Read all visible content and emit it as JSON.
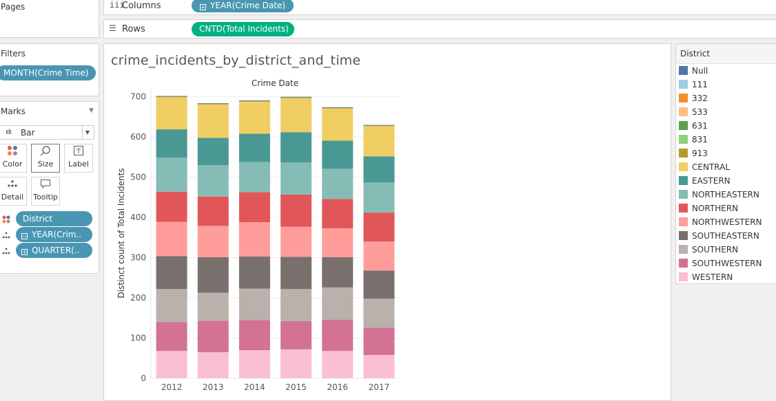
{
  "pages": {
    "title": "Pages"
  },
  "filters": {
    "title": "Filters",
    "pills": [
      "MONTH(Crime Time)"
    ]
  },
  "marks": {
    "title": "Marks",
    "type_label": "Bar",
    "buttons": [
      {
        "label": "Color",
        "icon": "color-dots-icon"
      },
      {
        "label": "Size",
        "icon": "size-icon"
      },
      {
        "label": "Label",
        "icon": "label-icon"
      },
      {
        "label": "Detail",
        "icon": "detail-icon"
      },
      {
        "label": "Tooltip",
        "icon": "tooltip-icon"
      }
    ],
    "fields": [
      {
        "label": "District",
        "icon": "color-dots-icon"
      },
      {
        "label": "YEAR(Crim..",
        "icon": "detail-icon",
        "box": "−"
      },
      {
        "label": "QUARTER(..",
        "icon": "detail-icon",
        "box": "+"
      }
    ]
  },
  "columns": {
    "label": "Columns",
    "pill": "YEAR(Crime Date)",
    "pill_box": "+"
  },
  "rows": {
    "label": "Rows",
    "pill": "CNTD(Total Incidents)"
  },
  "sheet": {
    "title": "crime_incidents_by_district_and_time"
  },
  "legend": {
    "title": "District",
    "items": [
      {
        "label": "Null",
        "color": "#4e79a7"
      },
      {
        "label": "111",
        "color": "#a0cbe8"
      },
      {
        "label": "332",
        "color": "#f28e2b"
      },
      {
        "label": "533",
        "color": "#ffbe7d"
      },
      {
        "label": "631",
        "color": "#59a14f"
      },
      {
        "label": "831",
        "color": "#8cd17d"
      },
      {
        "label": "913",
        "color": "#b6992d"
      },
      {
        "label": "CENTRAL",
        "color": "#f1ce63"
      },
      {
        "label": "EASTERN",
        "color": "#499894"
      },
      {
        "label": "NORTHEASTERN",
        "color": "#86bcb6"
      },
      {
        "label": "NORTHERN",
        "color": "#e15759"
      },
      {
        "label": "NORTHWESTERN",
        "color": "#ff9d9a"
      },
      {
        "label": "SOUTHEASTERN",
        "color": "#79706e"
      },
      {
        "label": "SOUTHERN",
        "color": "#bab0ac"
      },
      {
        "label": "SOUTHWESTERN",
        "color": "#d37295"
      },
      {
        "label": "WESTERN",
        "color": "#fabfd2"
      }
    ]
  },
  "chart_data": {
    "type": "bar",
    "stacked": true,
    "title": "Crime Date",
    "xlabel": "",
    "ylabel": "Distinct count of Total Incidents",
    "ylim": [
      0,
      720
    ],
    "yticks": [
      0,
      100,
      200,
      300,
      400,
      500,
      600,
      700
    ],
    "categories": [
      "2012",
      "2013",
      "2014",
      "2015",
      "2016",
      "2017"
    ],
    "grid": true,
    "legend_position": "right",
    "series": [
      {
        "name": "WESTERN",
        "color": "#fabfd2",
        "values": [
          68,
          65,
          70,
          72,
          68,
          58
        ]
      },
      {
        "name": "SOUTHWESTERN",
        "color": "#d37295",
        "values": [
          72,
          78,
          75,
          70,
          78,
          68
        ]
      },
      {
        "name": "SOUTHERN",
        "color": "#bab0ac",
        "values": [
          82,
          70,
          78,
          80,
          80,
          72
        ]
      },
      {
        "name": "SOUTHEASTERN",
        "color": "#79706e",
        "values": [
          82,
          88,
          80,
          80,
          75,
          70
        ]
      },
      {
        "name": "NORTHWESTERN",
        "color": "#ff9d9a",
        "values": [
          85,
          78,
          85,
          75,
          72,
          72
        ]
      },
      {
        "name": "NORTHERN",
        "color": "#e15759",
        "values": [
          75,
          73,
          75,
          80,
          73,
          72
        ]
      },
      {
        "name": "NORTHEASTERN",
        "color": "#86bcb6",
        "values": [
          85,
          78,
          75,
          80,
          75,
          75
        ]
      },
      {
        "name": "EASTERN",
        "color": "#499894",
        "values": [
          70,
          68,
          70,
          75,
          70,
          65
        ]
      },
      {
        "name": "CENTRAL",
        "color": "#f1ce63",
        "values": [
          80,
          83,
          80,
          85,
          80,
          75
        ]
      },
      {
        "name": "913",
        "color": "#b6992d",
        "values": [
          2,
          2,
          2,
          2,
          2,
          2
        ]
      },
      {
        "name": "831",
        "color": "#8cd17d",
        "values": [
          0,
          0,
          0,
          0,
          0,
          0
        ]
      },
      {
        "name": "631",
        "color": "#59a14f",
        "values": [
          0,
          0,
          0,
          0,
          0,
          0
        ]
      },
      {
        "name": "533",
        "color": "#ffbe7d",
        "values": [
          0,
          0,
          0,
          0,
          0,
          0
        ]
      },
      {
        "name": "332",
        "color": "#f28e2b",
        "values": [
          0,
          0,
          0,
          0,
          0,
          0
        ]
      },
      {
        "name": "111",
        "color": "#a0cbe8",
        "values": [
          0,
          0,
          0,
          0,
          0,
          0
        ]
      },
      {
        "name": "Null",
        "color": "#4e79a7",
        "values": [
          1,
          1,
          1,
          1,
          1,
          1
        ]
      }
    ]
  }
}
